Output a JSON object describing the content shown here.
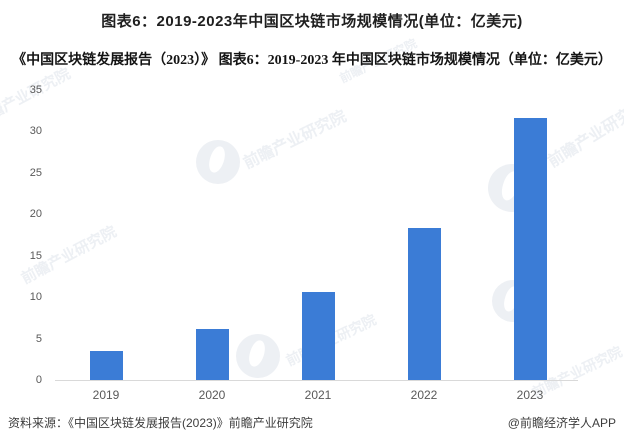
{
  "header": {
    "title": "图表6：2019-2023年中国区块链市场规模情况(单位：亿美元)",
    "subtitle": "《中国区块链发展报告（2023）》 图表6：2019-2023 年中国区块链市场规模情况（单位：亿美元）"
  },
  "footer": {
    "source": "资料来源：《中国区块链发展报告(2023)》前瞻产业研究院",
    "credit": "@前瞻经济学人APP"
  },
  "watermark": {
    "brand": "前瞻产业研究院"
  },
  "colors": {
    "bar": "#3B7CD6",
    "axis_line": "#D9D9D9",
    "tick_text": "#595959",
    "title_text": "#1F1F1F",
    "watermark": "#EDF0F4"
  },
  "chart_data": {
    "type": "bar",
    "title": "图表6：2019-2023年中国区块链市场规模情况(单位：亿美元)",
    "subtitle": "《中国区块链发展报告（2023）》 图表6：2019-2023 年中国区块链市场规模情况（单位：亿美元）",
    "categories": [
      "2019",
      "2020",
      "2021",
      "2022",
      "2023"
    ],
    "values": [
      3.5,
      6.2,
      10.6,
      18.3,
      31.6
    ],
    "unit": "亿美元",
    "xlabel": "",
    "ylabel": "",
    "ylim": [
      0,
      35
    ],
    "yticks": [
      0,
      5,
      10,
      15,
      20,
      25,
      30,
      35
    ],
    "grid": false,
    "legend": "none"
  }
}
